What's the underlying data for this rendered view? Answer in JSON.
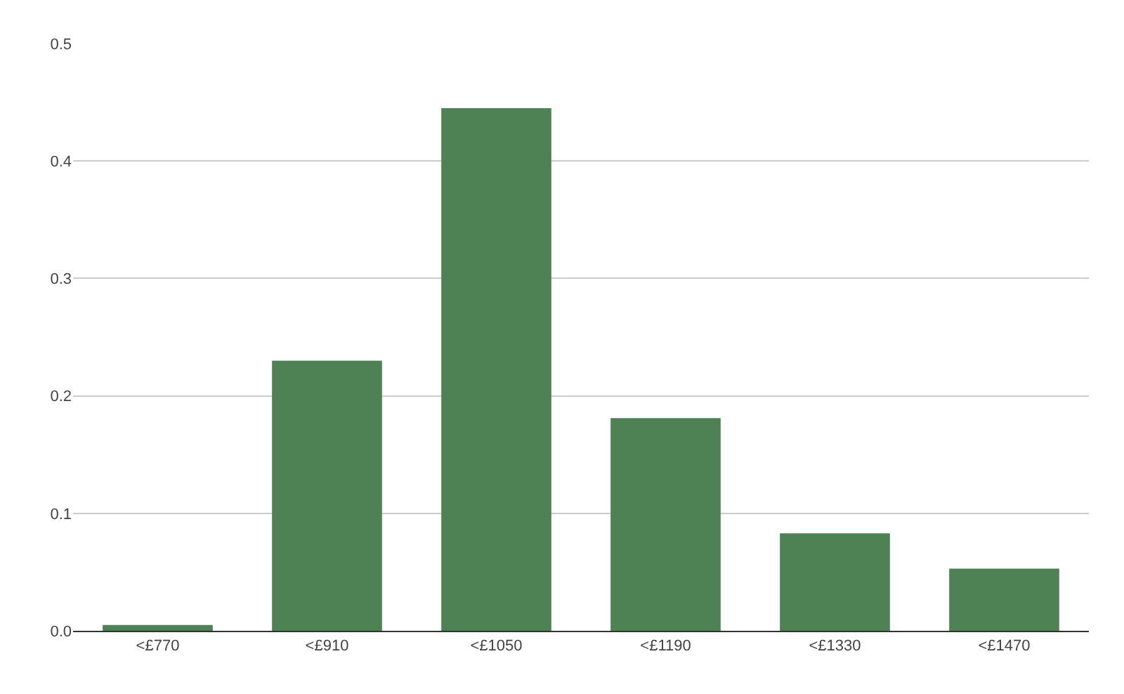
{
  "chart_data": {
    "type": "bar",
    "categories": [
      "<£770",
      "<£910",
      "<£1050",
      "<£1190",
      "<£1330",
      "<£1470"
    ],
    "values": [
      0.005,
      0.23,
      0.445,
      0.181,
      0.083,
      0.053
    ],
    "color": "#4e8255",
    "ylim": [
      0,
      0.5
    ],
    "yticks": [
      {
        "value": 0,
        "label": "0.0"
      },
      0.1,
      0.2,
      0.3,
      0.4,
      0.5
    ],
    "grid": "y"
  }
}
